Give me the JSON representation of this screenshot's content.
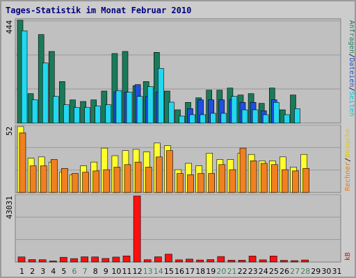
{
  "chart_data": {
    "type": "bar",
    "title": "Tages-Statistik im Monat Februar 2010",
    "days": [
      "1",
      "2",
      "3",
      "4",
      "5",
      "6",
      "7",
      "8",
      "9",
      "10",
      "11",
      "12",
      "13",
      "14",
      "15",
      "16",
      "17",
      "18",
      "19",
      "20",
      "21",
      "22",
      "23",
      "24",
      "25",
      "26",
      "27",
      "28",
      "29",
      "30",
      "31"
    ],
    "weekend_days": [
      6,
      7,
      13,
      14,
      20,
      21,
      27,
      28
    ],
    "colors": {
      "title": "#000080",
      "background": "#c0c0c0",
      "grid": "#999999",
      "weekend_label": "#408060",
      "day_label": "#000000"
    },
    "panels": [
      {
        "id": "visits",
        "ymax_label": "444",
        "ymax": 444,
        "legend": [
          {
            "text": "Anfragen",
            "color": "#208060"
          },
          {
            "text": "/",
            "color": "#000000"
          },
          {
            "text": "Dateien",
            "color": "#2050d0"
          },
          {
            "text": "/",
            "color": "#000000"
          },
          {
            "text": "Seiten",
            "color": "#00c8e0"
          }
        ],
        "series": [
          {
            "name": "Anfragen",
            "color": "#1a7a5a",
            "values": [
              444,
              127,
              382,
              309,
              179,
              100,
              93,
              100,
              138,
              300,
              309,
              161,
              179,
              305,
              138,
              57,
              89,
              109,
              142,
              142,
              151,
              121,
              127,
              85,
              151,
              57,
              121,
              0,
              0,
              0,
              0
            ]
          },
          {
            "name": "Dateien",
            "color": "#1f4fe0",
            "values": [
              0,
              0,
              0,
              0,
              0,
              0,
              0,
              0,
              0,
              133,
              133,
              166,
              115,
              133,
              0,
              0,
              62,
              100,
              100,
              100,
              100,
              89,
              89,
              53,
              100,
              0,
              0,
              0,
              0,
              0,
              0
            ]
          },
          {
            "name": "Seiten",
            "color": "#22d8f0",
            "values": [
              398,
              100,
              259,
              115,
              79,
              67,
              67,
              73,
              79,
              140,
              133,
              115,
              157,
              236,
              90,
              30,
              36,
              36,
              42,
              42,
              115,
              57,
              57,
              36,
              89,
              36,
              62,
              0,
              0,
              0,
              0
            ]
          }
        ]
      },
      {
        "id": "visitors",
        "ymax_label": "52",
        "ymax": 52,
        "legend": [
          {
            "text": "Besuche",
            "color": "#e0c800"
          },
          {
            "text": "/",
            "color": "#000000"
          },
          {
            "text": "Rechner",
            "color": "#f07800"
          }
        ],
        "series": [
          {
            "name": "Besuche",
            "color": "#ffff30",
            "values": [
              52,
              27,
              28,
              24,
              16,
              14,
              21,
              24,
              35,
              29,
              33,
              34,
              32,
              39,
              37,
              18,
              23,
              21,
              31,
              26,
              26,
              31,
              30,
              25,
              25,
              28,
              20,
              30,
              0,
              0,
              0
            ]
          },
          {
            "name": "Rechner",
            "color": "#f08020",
            "values": [
              47,
              21,
              21,
              26,
              19,
              15,
              16,
              17,
              18,
              20,
              22,
              24,
              20,
              28,
              33,
              15,
              14,
              15,
              15,
              22,
              18,
              35,
              25,
              23,
              22,
              18,
              17,
              19,
              0,
              0,
              0
            ]
          }
        ]
      },
      {
        "id": "kb",
        "ymax_label": "43031",
        "ymax": 43031,
        "legend": [
          {
            "text": "kB",
            "color": "#d01010"
          }
        ],
        "series": [
          {
            "name": "kB",
            "color": "#ff1010",
            "values": [
              3300,
              1600,
              1500,
              700,
              3100,
              2200,
              3400,
              3300,
              2300,
              3200,
              4000,
              43031,
              1500,
              3400,
              5100,
              1400,
              1900,
              1300,
              1600,
              3600,
              1200,
              1200,
              3900,
              1400,
              3900,
              1100,
              900,
              1300,
              0,
              0,
              0
            ]
          }
        ]
      }
    ]
  }
}
